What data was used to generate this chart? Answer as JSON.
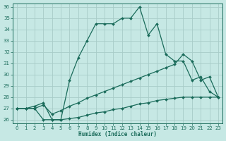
{
  "xlabel": "Humidex (Indice chaleur)",
  "bg_color": "#c6e8e4",
  "grid_color": "#a8ccc8",
  "line_color": "#1a6b5a",
  "xlim": [
    -0.5,
    23.5
  ],
  "ylim": [
    25.7,
    36.3
  ],
  "yticks": [
    26,
    27,
    28,
    29,
    30,
    31,
    32,
    33,
    34,
    35,
    36
  ],
  "xticks": [
    0,
    1,
    2,
    3,
    4,
    5,
    6,
    7,
    8,
    9,
    10,
    11,
    12,
    13,
    14,
    15,
    16,
    17,
    18,
    19,
    20,
    21,
    22,
    23
  ],
  "line1_x": [
    0,
    1,
    2,
    3,
    4,
    5,
    6,
    7,
    8,
    9,
    10,
    11,
    12,
    13,
    14,
    15,
    16,
    17,
    18,
    19,
    20,
    21,
    22,
    23
  ],
  "line1_y": [
    27.0,
    27.0,
    27.2,
    27.5,
    26.0,
    26.0,
    29.5,
    31.5,
    33.0,
    34.5,
    34.5,
    34.5,
    35.0,
    35.0,
    36.0,
    33.5,
    34.5,
    31.8,
    31.2,
    31.2,
    29.5,
    29.8,
    28.5,
    28.0
  ],
  "line2_x": [
    0,
    1,
    2,
    3,
    4,
    5,
    6,
    7,
    8,
    9,
    10,
    11,
    12,
    13,
    14,
    15,
    16,
    17,
    18,
    19,
    20,
    21,
    22,
    23
  ],
  "line2_y": [
    27.0,
    27.0,
    27.0,
    27.3,
    26.5,
    26.8,
    27.2,
    27.5,
    27.9,
    28.2,
    28.5,
    28.8,
    29.1,
    29.4,
    29.7,
    30.0,
    30.3,
    30.6,
    30.9,
    31.8,
    31.2,
    29.5,
    29.8,
    28.0
  ],
  "line3_x": [
    0,
    1,
    2,
    3,
    4,
    5,
    6,
    7,
    8,
    9,
    10,
    11,
    12,
    13,
    14,
    15,
    16,
    17,
    18,
    19,
    20,
    21,
    22,
    23
  ],
  "line3_y": [
    27.0,
    27.0,
    27.0,
    26.0,
    26.0,
    26.0,
    26.1,
    26.2,
    26.4,
    26.6,
    26.7,
    26.9,
    27.0,
    27.2,
    27.4,
    27.5,
    27.7,
    27.8,
    27.9,
    28.0,
    28.0,
    28.0,
    28.0,
    28.0
  ]
}
